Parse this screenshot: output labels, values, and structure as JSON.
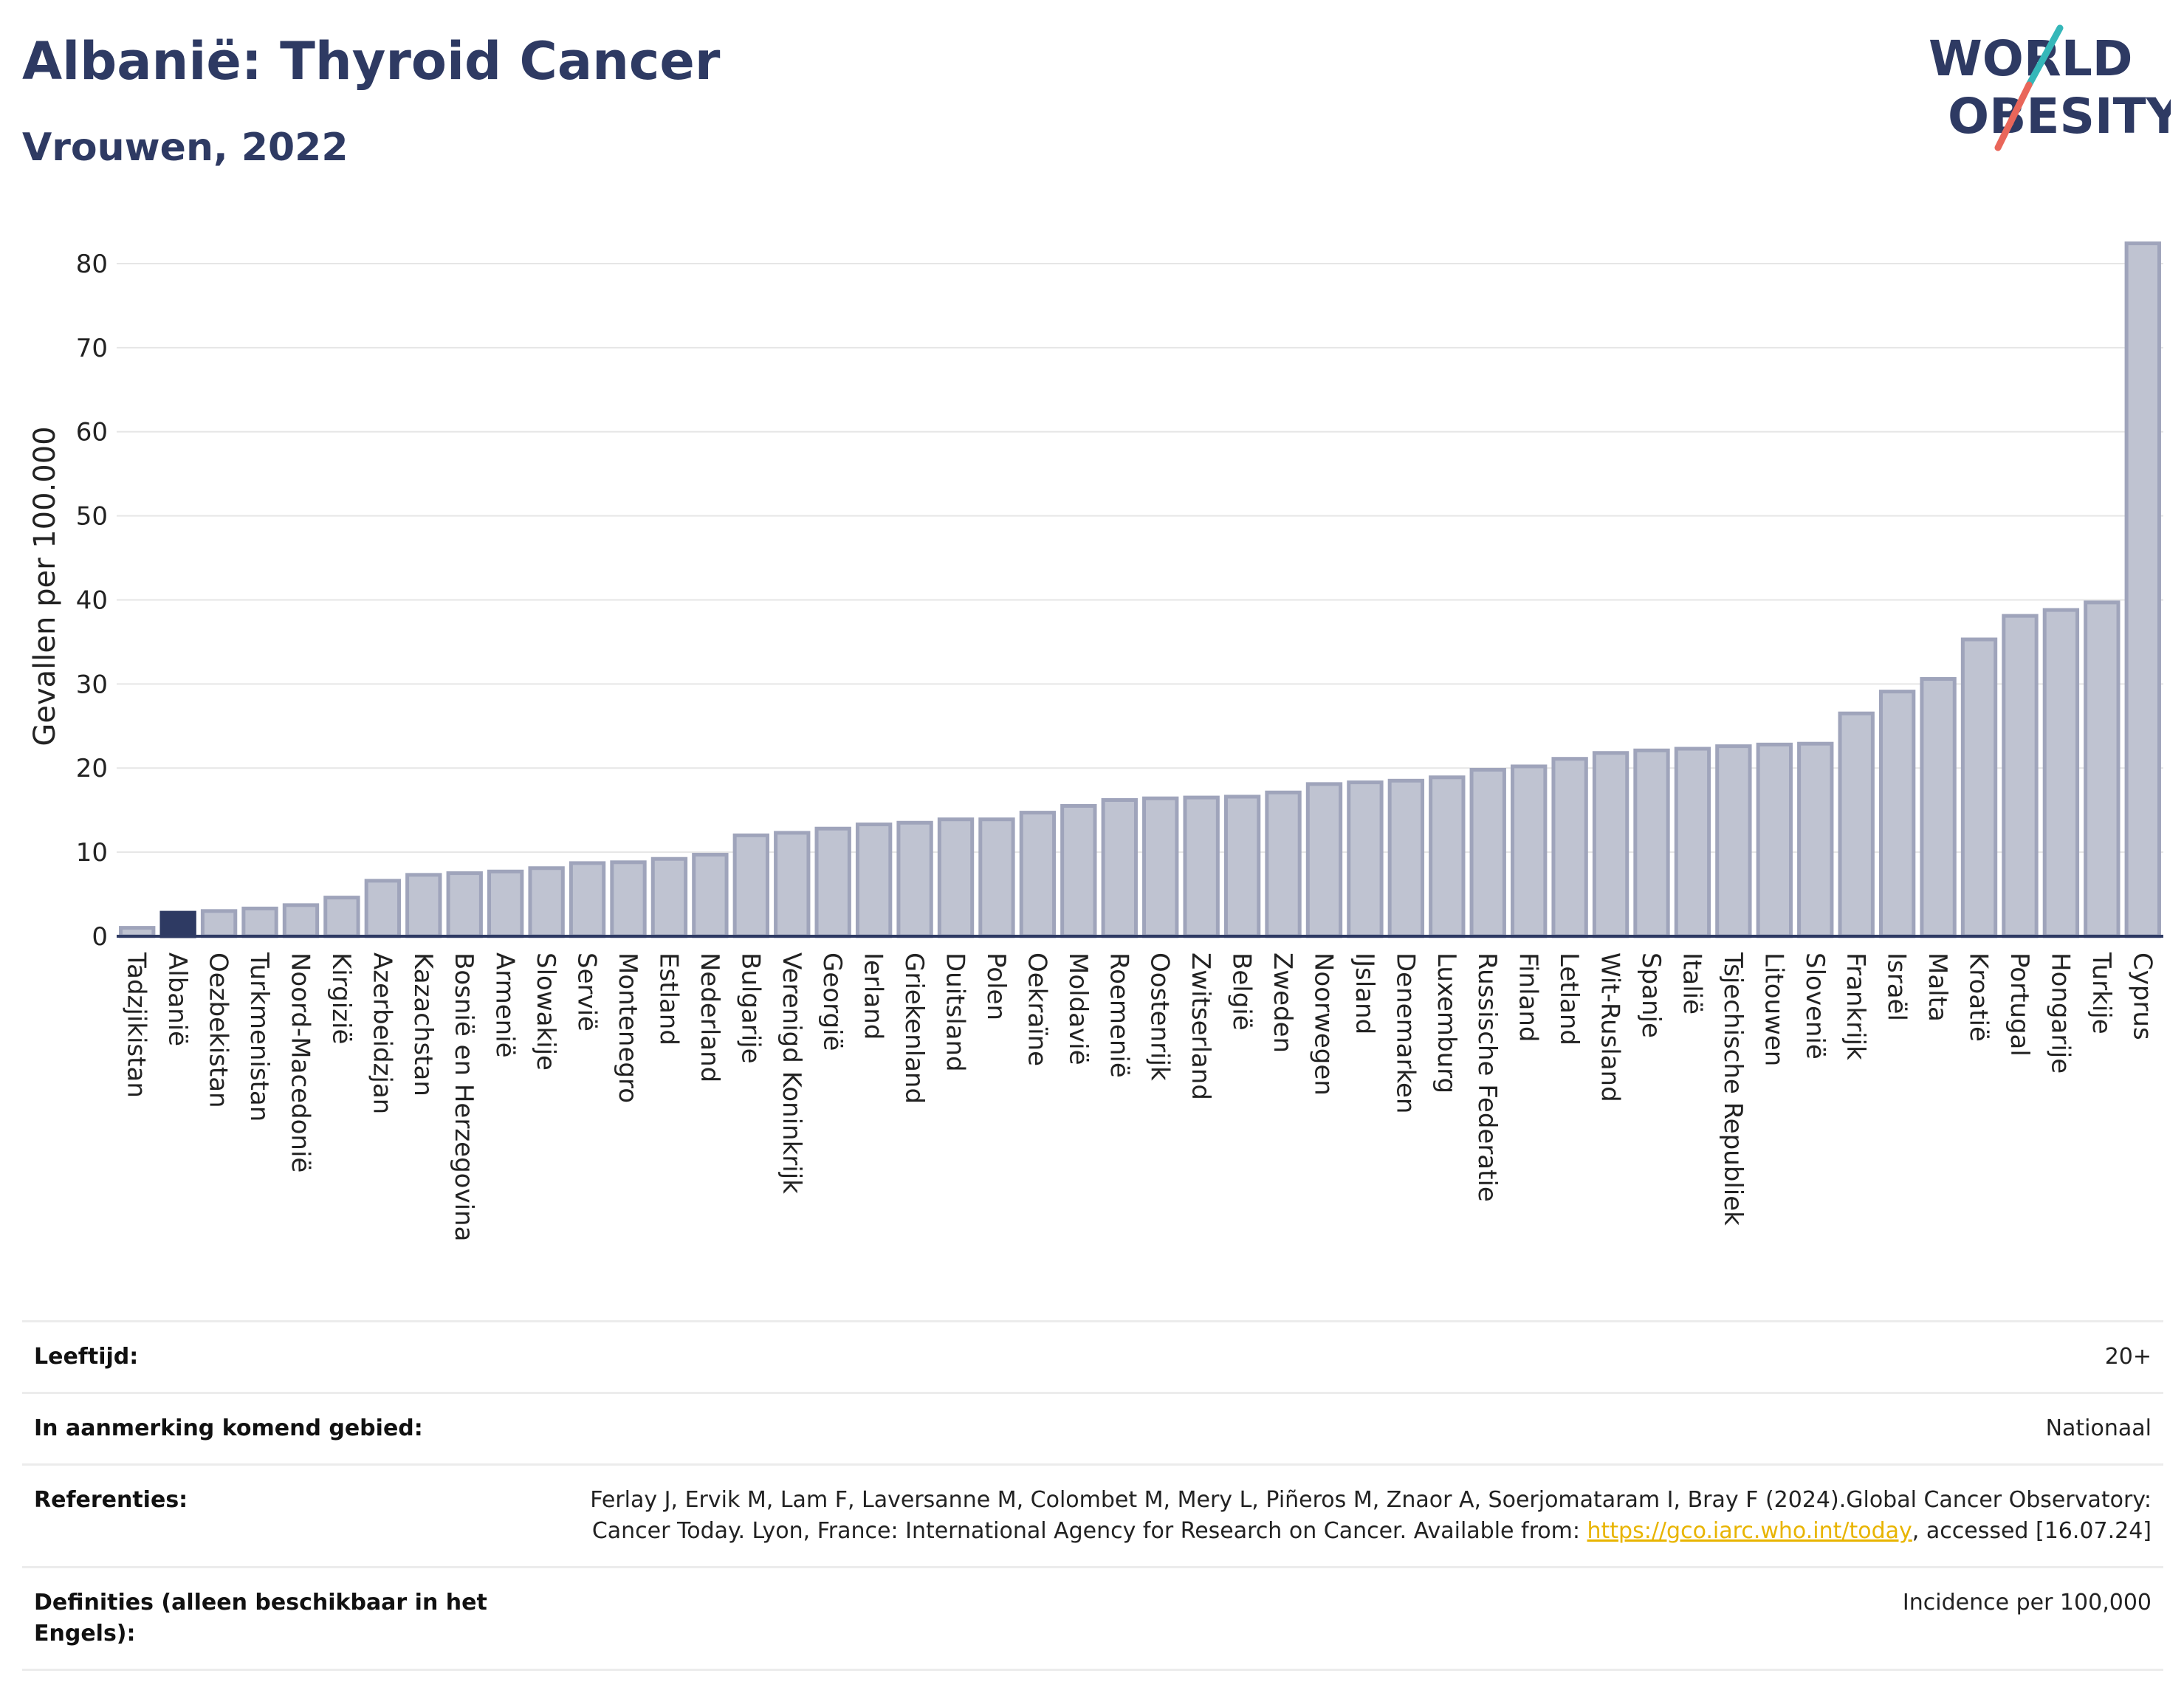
{
  "header": {
    "title": "Albanië: Thyroid Cancer",
    "subtitle": "Vrouwen, 2022"
  },
  "logo": {
    "text_line1": "WORLD",
    "text_line2": "OBESITY",
    "colors": {
      "text": "#2e3a63",
      "slash_top": "#35b7b9",
      "slash_bottom": "#e9665a"
    }
  },
  "colors": {
    "bar_fill": "#bfc3d1",
    "bar_stroke": "#9fa4bb",
    "highlight_fill": "#2e3a63",
    "axis": "#2e3a63",
    "grid": "#e6e6e6"
  },
  "chart_data": {
    "type": "bar",
    "title": "Albanië: Thyroid Cancer",
    "subtitle": "Vrouwen, 2022",
    "xlabel": "",
    "ylabel": "Gevallen per 100.000",
    "ylim": [
      0,
      85
    ],
    "yticks": [
      0,
      10,
      20,
      30,
      40,
      50,
      60,
      70,
      80
    ],
    "grid": true,
    "highlight": "Albanië",
    "categories": [
      "Tadzjikistan",
      "Albanië",
      "Oezbekistan",
      "Turkmenistan",
      "Noord-Macedonië",
      "Kirgizië",
      "Azerbeidzjan",
      "Kazachstan",
      "Bosnië en Herzegovina",
      "Armenië",
      "Slowakije",
      "Servië",
      "Montenegro",
      "Estland",
      "Nederland",
      "Bulgarije",
      "Verenigd Koninkrijk",
      "Georgië",
      "Ierland",
      "Griekenland",
      "Duitsland",
      "Polen",
      "Oekraïne",
      "Moldavië",
      "Roemenië",
      "Oostenrijk",
      "Zwitserland",
      "België",
      "Zweden",
      "Noorwegen",
      "IJsland",
      "Denemarken",
      "Luxemburg",
      "Russische Federatie",
      "Finland",
      "Letland",
      "Wit-Rusland",
      "Spanje",
      "Italië",
      "Tsjechische Republiek",
      "Litouwen",
      "Slovenië",
      "Frankrijk",
      "Israël",
      "Malta",
      "Kroatië",
      "Portugal",
      "Hongarije",
      "Turkije",
      "Cyprus"
    ],
    "values": [
      1.0,
      2.8,
      3.0,
      3.3,
      3.7,
      4.6,
      6.6,
      7.3,
      7.5,
      7.7,
      8.1,
      8.7,
      8.8,
      9.2,
      9.7,
      12.0,
      12.3,
      12.8,
      13.3,
      13.5,
      13.9,
      13.9,
      14.7,
      15.5,
      16.2,
      16.4,
      16.5,
      16.6,
      17.1,
      18.1,
      18.3,
      18.5,
      18.9,
      19.8,
      20.2,
      21.1,
      21.8,
      22.1,
      22.3,
      22.6,
      22.8,
      22.9,
      26.5,
      29.1,
      30.6,
      35.3,
      38.1,
      38.8,
      39.7,
      82.4
    ]
  },
  "info": [
    {
      "label": "Leeftijd:",
      "value": "20+"
    },
    {
      "label": "In aanmerking komend gebied:",
      "value": "Nationaal"
    },
    {
      "label": "Referenties:",
      "value_before": "Ferlay J, Ervik M, Lam F, Laversanne M, Colombet M, Mery L, Piñeros M, Znaor A, Soerjomataram I, Bray F (2024).Global Cancer Observatory: Cancer Today. Lyon, France: International Agency for Research on Cancer. Available from: ",
      "link": "https://gco.iarc.who.int/today",
      "value_after": ", accessed [16.07.24]"
    },
    {
      "label": "Definities (alleen beschikbaar in het Engels):",
      "value": "Incidence per 100,000"
    }
  ]
}
